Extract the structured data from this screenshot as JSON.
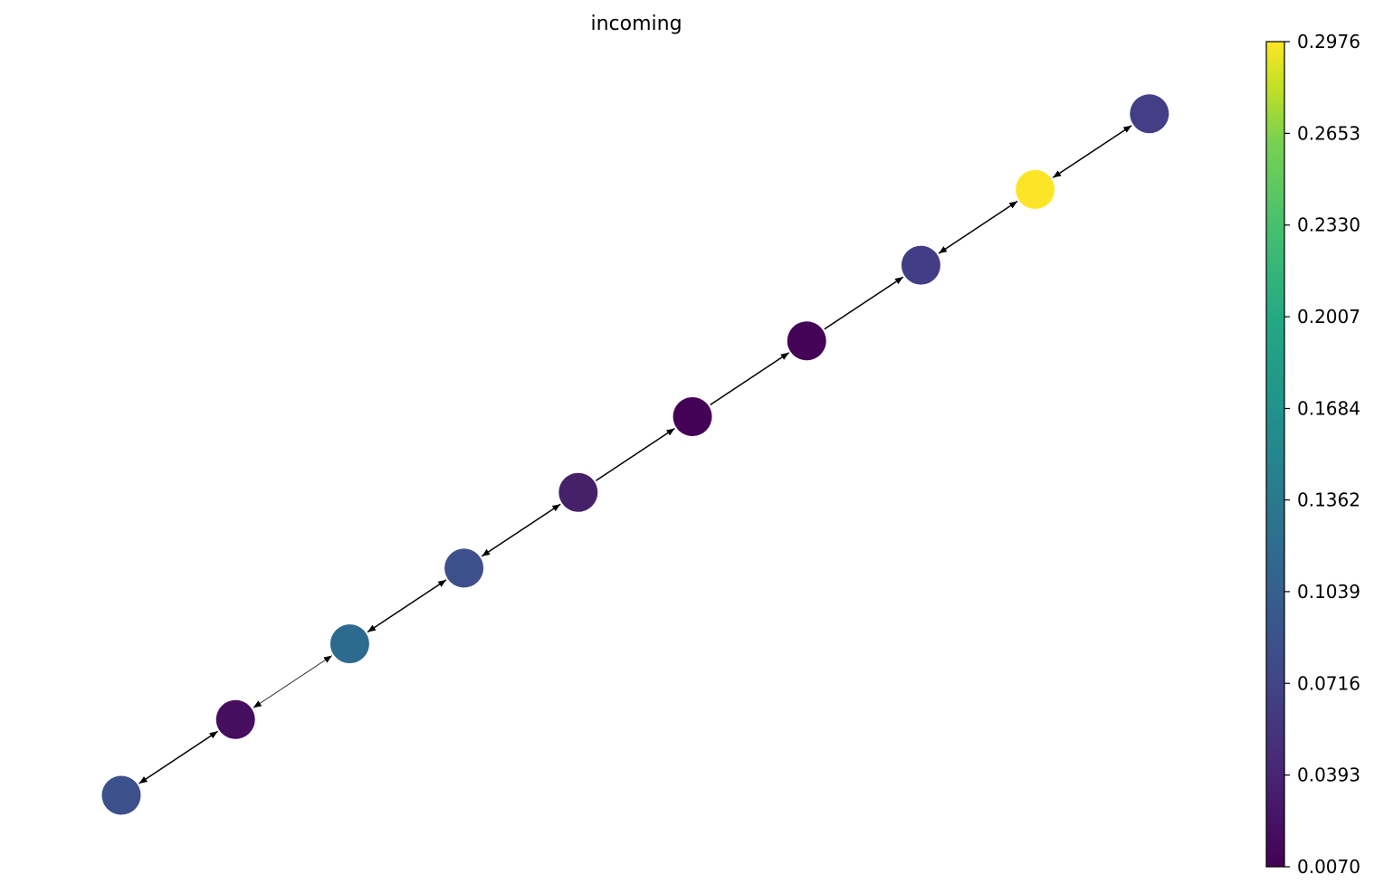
{
  "title": "incoming",
  "colorbar": {
    "min": 0.007,
    "max": 0.2976,
    "colormap": "viridis",
    "ticks": [
      "0.0070",
      "0.0393",
      "0.0716",
      "0.1039",
      "0.1362",
      "0.1684",
      "0.2007",
      "0.2330",
      "0.2653",
      "0.2976"
    ]
  },
  "graph": {
    "type": "directed-chain",
    "nodes": [
      {
        "id": "n0",
        "value": 0.08,
        "color": "#3c508b"
      },
      {
        "id": "n1",
        "value": 0.018,
        "color": "#450e5e"
      },
      {
        "id": "n2",
        "value": 0.114,
        "color": "#2d6b8e"
      },
      {
        "id": "n3",
        "value": 0.076,
        "color": "#3e508b"
      },
      {
        "id": "n4",
        "value": 0.035,
        "color": "#462069"
      },
      {
        "id": "n5",
        "value": 0.008,
        "color": "#440256"
      },
      {
        "id": "n6",
        "value": 0.01,
        "color": "#440356"
      },
      {
        "id": "n7",
        "value": 0.065,
        "color": "#433d85"
      },
      {
        "id": "n8",
        "value": 0.2976,
        "color": "#fce526"
      },
      {
        "id": "n9",
        "value": 0.067,
        "color": "#433e86"
      }
    ],
    "edges": [
      {
        "from": "n0",
        "to": "n1",
        "bidirectional": true
      },
      {
        "from": "n1",
        "to": "n2",
        "bidirectional": true
      },
      {
        "from": "n2",
        "to": "n3",
        "bidirectional": true
      },
      {
        "from": "n3",
        "to": "n4",
        "bidirectional": true
      },
      {
        "from": "n4",
        "to": "n5",
        "bidirectional": false
      },
      {
        "from": "n5",
        "to": "n6",
        "bidirectional": false
      },
      {
        "from": "n6",
        "to": "n7",
        "bidirectional": false
      },
      {
        "from": "n7",
        "to": "n8",
        "bidirectional": true
      },
      {
        "from": "n8",
        "to": "n9",
        "bidirectional": true
      }
    ]
  }
}
